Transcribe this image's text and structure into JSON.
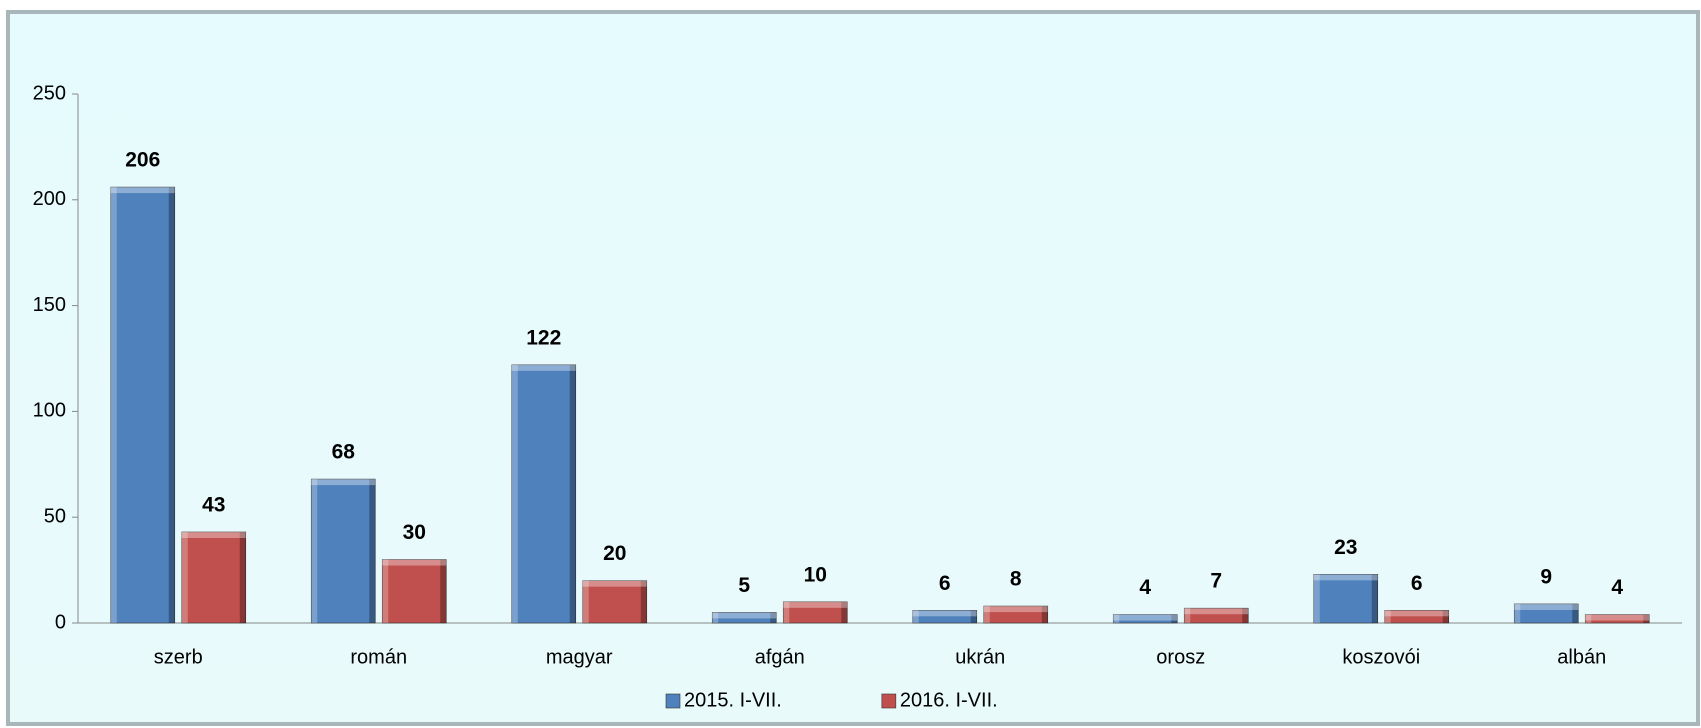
{
  "chart_data": {
    "type": "bar",
    "categories": [
      "szerb",
      "román",
      "magyar",
      "afgán",
      "ukrán",
      "orosz",
      "koszovói",
      "albán"
    ],
    "series": [
      {
        "name": "2015. I-VII.",
        "color": "#4f81bd",
        "values": [
          206,
          68,
          122,
          5,
          6,
          4,
          23,
          9
        ]
      },
      {
        "name": "2016. I-VII.",
        "color": "#c0504d",
        "values": [
          43,
          30,
          20,
          10,
          8,
          7,
          6,
          4
        ]
      }
    ],
    "ylim": [
      0,
      250
    ],
    "yticks": [
      0,
      50,
      100,
      150,
      200,
      250
    ],
    "legend": "bottom"
  }
}
